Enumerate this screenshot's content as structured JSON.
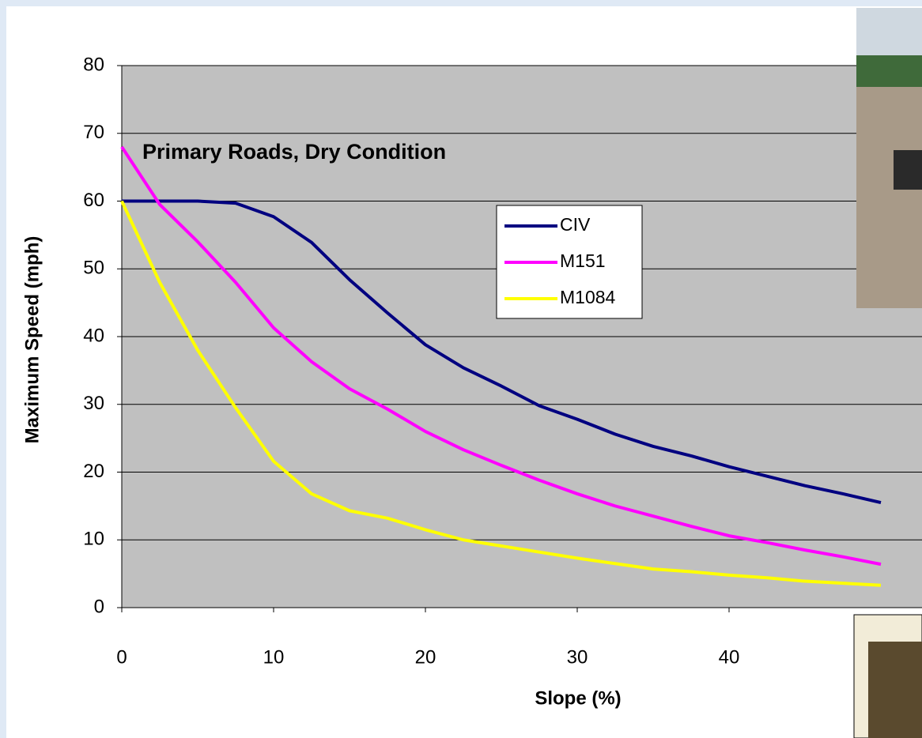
{
  "chart_data": {
    "type": "line",
    "annotation": "Primary Roads, Dry Condition",
    "x_label": "Slope (%)",
    "y_label": "Maximum Speed (mph)",
    "x": [
      0,
      2.5,
      5,
      7.5,
      10,
      12.5,
      15,
      17.5,
      20,
      22.5,
      25,
      27.5,
      30,
      32.5,
      35,
      37.5,
      40,
      42.5,
      45,
      47.5,
      50
    ],
    "series": [
      {
        "name": "CIV",
        "color": "#000080",
        "values": [
          60,
          60,
          60,
          59.7,
          57.7,
          53.9,
          48.4,
          43.5,
          38.8,
          35.4,
          32.7,
          29.8,
          27.8,
          25.6,
          23.8,
          22.4,
          20.8,
          19.4,
          18,
          16.8,
          15.5
        ]
      },
      {
        "name": "M151",
        "color": "#ff00ff",
        "values": [
          68,
          59.5,
          54,
          48,
          41.3,
          36.3,
          32.3,
          29.3,
          26,
          23.3,
          21,
          18.8,
          16.8,
          15,
          13.5,
          12,
          10.6,
          9.6,
          8.5,
          7.5,
          6.4
        ]
      },
      {
        "name": "M1084",
        "color": "#ffff00",
        "values": [
          60,
          48,
          38,
          29.5,
          21.6,
          16.8,
          14.3,
          13.2,
          11.5,
          10,
          9.1,
          8.2,
          7.3,
          6.5,
          5.7,
          5.3,
          4.8,
          4.4,
          3.9,
          3.6,
          3.3
        ]
      }
    ],
    "xlim": [
      0,
      50
    ],
    "xticks": [
      0,
      10,
      20,
      30,
      40
    ],
    "ylim": [
      0,
      80
    ],
    "yticks": [
      0,
      10,
      20,
      30,
      40,
      50,
      60,
      70,
      80
    ],
    "grid": true,
    "plot_background": "#c0c0c0"
  }
}
